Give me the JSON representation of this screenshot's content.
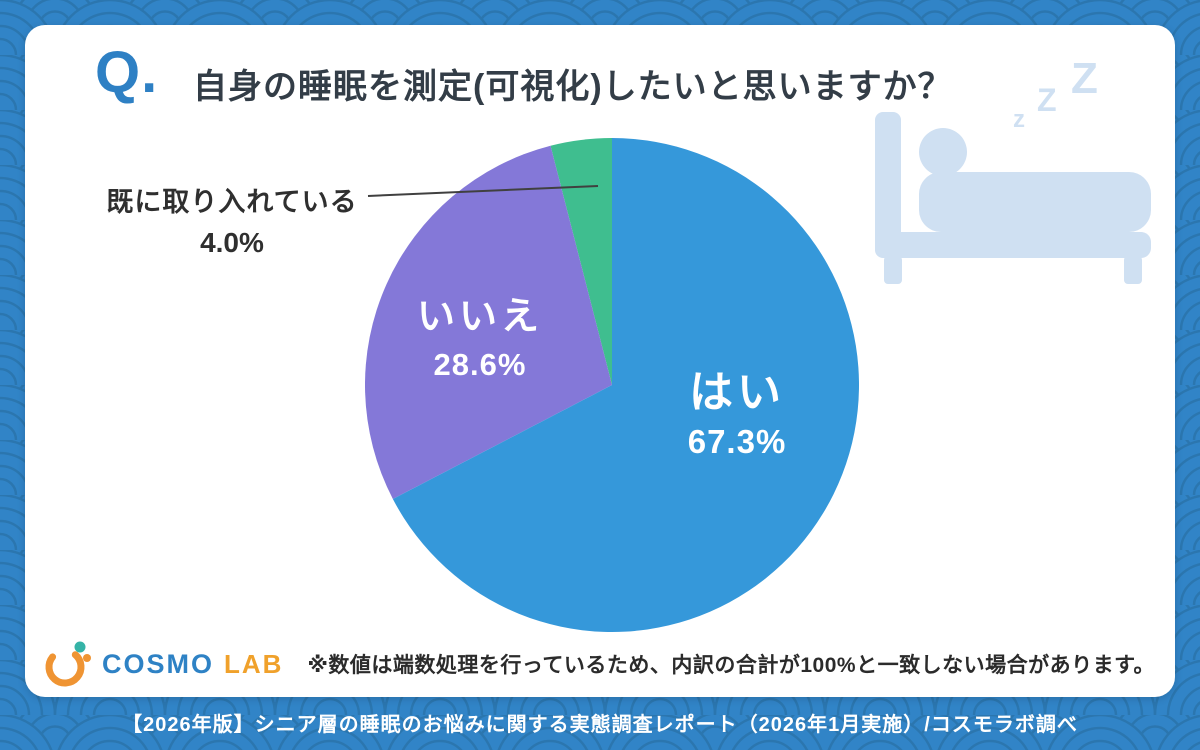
{
  "page": {
    "question_prefix": "Q.",
    "title": "自身の睡眠を測定(可視化)したいと思いますか？",
    "note": "※数値は端数処理を行っているため、内訳の合計が100%と一致しない場合があります。",
    "footer": "【2026年版】シニア層の睡眠のお悩みに関する実態調査レポート（2026年1月実施）/コスモラボ調べ"
  },
  "logo": {
    "cosmo": "COSMO",
    "lab": "LAB"
  },
  "sleep_icon": {
    "zzz": [
      "Z",
      "Z",
      "z"
    ]
  },
  "colors": {
    "background": "#3184c7",
    "wave_line": "#2b76af",
    "accent_blue": "#2e80c4",
    "title_text": "#333d47",
    "icon_light_blue": "#cfe0f2",
    "logo_orange": "#f0a12b",
    "logo_teal": "#35b3a7"
  },
  "chart_data": {
    "type": "pie",
    "title": "自身の睡眠を測定(可視化)したいと思いますか？",
    "direction": "clockwise",
    "start_angle_deg": 0,
    "legend": "none",
    "labels_on_slices": true,
    "slices": [
      {
        "label": "はい",
        "value": 67.3,
        "display": "67.3%",
        "color": "#3598da"
      },
      {
        "label": "いいえ",
        "value": 28.6,
        "display": "28.6%",
        "color": "#8478d8"
      },
      {
        "label": "既に取り入れている",
        "value": 4.0,
        "display": "4.0%",
        "color": "#3fbe8f"
      }
    ]
  }
}
